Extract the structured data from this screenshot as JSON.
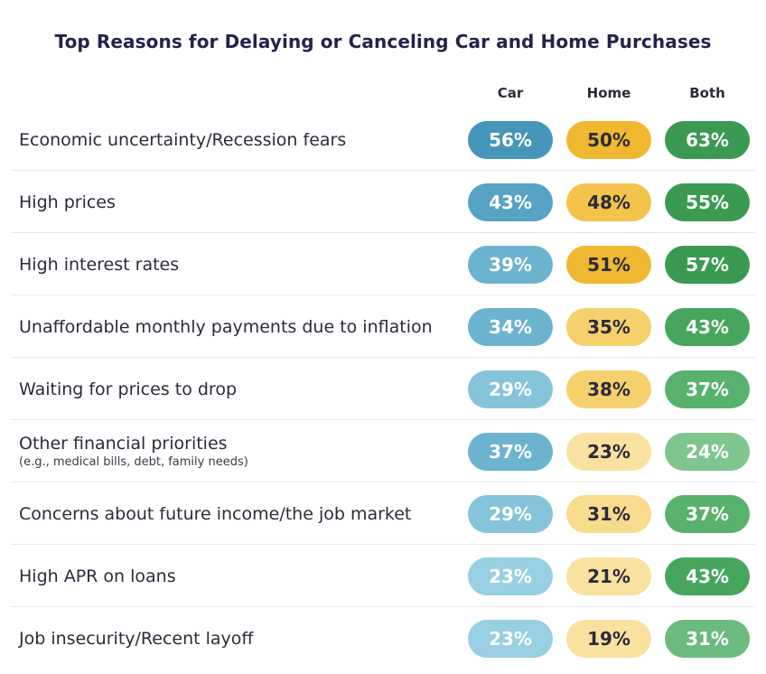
{
  "chart_data": {
    "type": "table",
    "title": "Top Reasons for Delaying or Canceling Car and Home Purchases",
    "columns": [
      "Car",
      "Home",
      "Both"
    ],
    "rows": [
      {
        "label": "Economic uncertainty/Recession fears",
        "sublabel": "",
        "values": [
          "56%",
          "50%",
          "63%"
        ]
      },
      {
        "label": "High prices",
        "sublabel": "",
        "values": [
          "43%",
          "48%",
          "55%"
        ]
      },
      {
        "label": "High interest rates",
        "sublabel": "",
        "values": [
          "39%",
          "51%",
          "57%"
        ]
      },
      {
        "label": "Unaffordable monthly payments due to inflation",
        "sublabel": "",
        "values": [
          "34%",
          "35%",
          "43%"
        ]
      },
      {
        "label": "Waiting for prices to drop",
        "sublabel": "",
        "values": [
          "29%",
          "38%",
          "37%"
        ]
      },
      {
        "label": "Other financial priorities",
        "sublabel": "(e.g., medical bills, debt, family needs)",
        "values": [
          "37%",
          "23%",
          "24%"
        ]
      },
      {
        "label": "Concerns about future income/the job market",
        "sublabel": "",
        "values": [
          "29%",
          "31%",
          "37%"
        ]
      },
      {
        "label": "High APR on loans",
        "sublabel": "",
        "values": [
          "23%",
          "21%",
          "43%"
        ]
      },
      {
        "label": "Job insecurity/Recent layoff",
        "sublabel": "",
        "values": [
          "23%",
          "19%",
          "31%"
        ]
      }
    ],
    "colors": {
      "car": [
        "#4596b8",
        "#56a3c3",
        "#6cb3cf",
        "#85c3da",
        "#99cfe2"
      ],
      "home": [
        "#f0b730",
        "#f3c34c",
        "#f6d06d",
        "#f8db8c",
        "#f9e2a0"
      ],
      "both": [
        "#3b9a52",
        "#47a65e",
        "#58b16d",
        "#6cbb7e",
        "#7fc58f"
      ]
    }
  }
}
